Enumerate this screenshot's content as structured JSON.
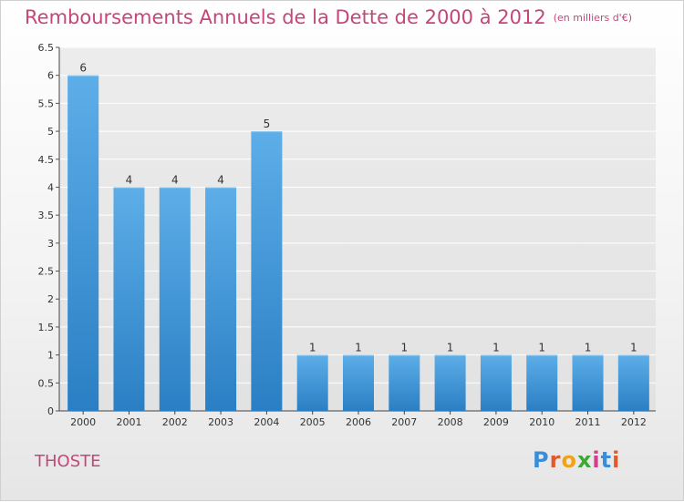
{
  "title": {
    "main": "Remboursements Annuels de la Dette de 2000 à 2012",
    "unit": "(en milliers d'€)"
  },
  "commune": "THOSTE",
  "logo": {
    "text": "Proxiti",
    "colors": [
      "#3b8ed6",
      "#e05a2c",
      "#f0a21a",
      "#3aaa35",
      "#d43f8d",
      "#3b8ed6",
      "#e05a2c"
    ]
  },
  "colors": {
    "bar_light": "#5daee8",
    "bar_dark": "#2a7fc4",
    "title": "#c4467a"
  },
  "chart_data": {
    "type": "bar",
    "categories": [
      "2000",
      "2001",
      "2002",
      "2003",
      "2004",
      "2005",
      "2006",
      "2007",
      "2008",
      "2009",
      "2010",
      "2011",
      "2012"
    ],
    "values": [
      6,
      4,
      4,
      4,
      5,
      1,
      1,
      1,
      1,
      1,
      1,
      1,
      1
    ],
    "ylim": [
      0,
      6.5
    ],
    "yticks": [
      "0",
      "0.5",
      "1",
      "1.5",
      "2",
      "2.5",
      "3",
      "3.5",
      "4",
      "4.5",
      "5",
      "5.5",
      "6",
      "6.5"
    ],
    "grid": true
  }
}
